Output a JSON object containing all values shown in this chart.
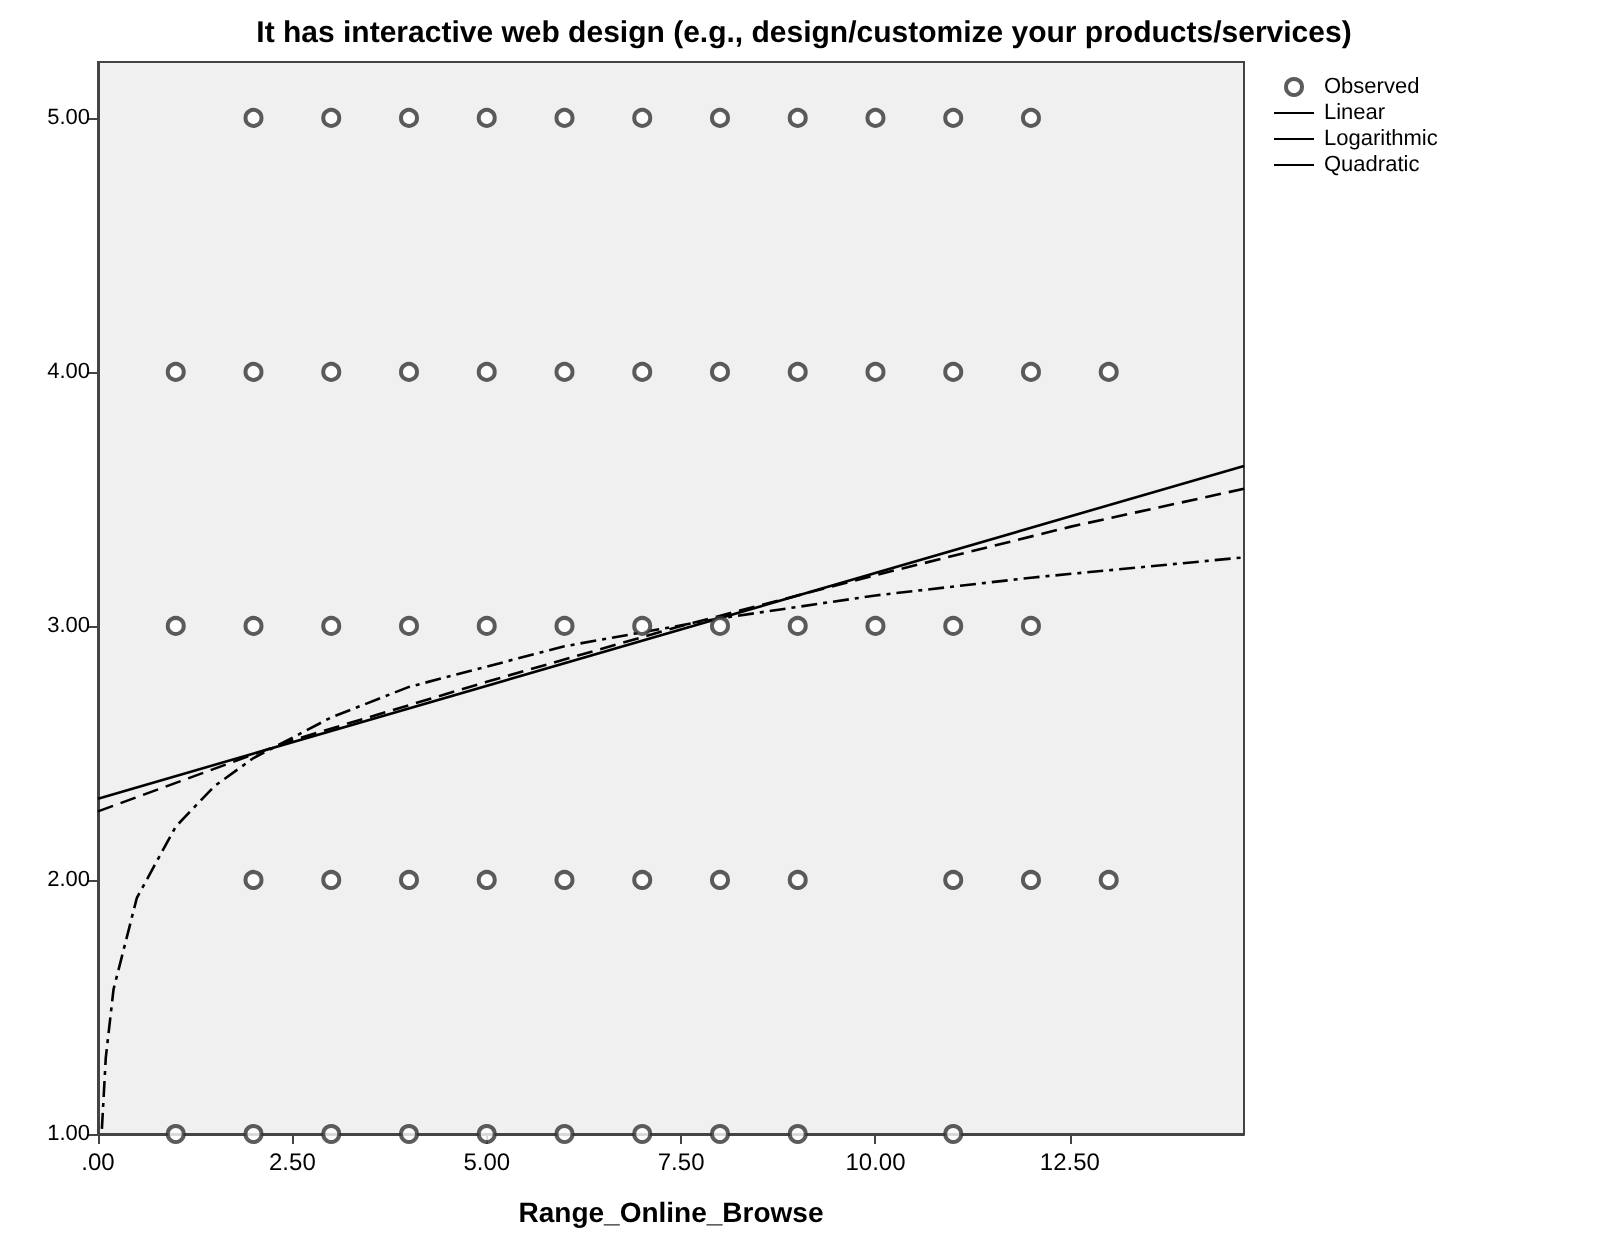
{
  "chart_data": {
    "type": "scatter",
    "title": "It has interactive web design (e.g., design/customize your products/services)",
    "xlabel": "Range_Online_Browse",
    "xlim": [
      0,
      14.74
    ],
    "ylim": [
      1,
      5.22
    ],
    "xticks": [
      {
        "value": 0,
        "label": ".00"
      },
      {
        "value": 2.5,
        "label": "2.50"
      },
      {
        "value": 5,
        "label": "5.00"
      },
      {
        "value": 7.5,
        "label": "7.50"
      },
      {
        "value": 10,
        "label": "10.00"
      },
      {
        "value": 12.5,
        "label": "12.50"
      }
    ],
    "yticks": [
      {
        "value": 1,
        "label": "1.00"
      },
      {
        "value": 2,
        "label": "2.00"
      },
      {
        "value": 3,
        "label": "3.00"
      },
      {
        "value": 4,
        "label": "4.00"
      },
      {
        "value": 5,
        "label": "5.00"
      }
    ],
    "grid": false,
    "legend": "top right",
    "marker": "circle",
    "series": [
      {
        "name": "Observed",
        "color": "#333333",
        "x": [
          2,
          3,
          4,
          5,
          6,
          7,
          8,
          9,
          10,
          11,
          12,
          1,
          2,
          3,
          4,
          5,
          6,
          7,
          8,
          9,
          10,
          11,
          12,
          13,
          1,
          2,
          3,
          4,
          5,
          6,
          7,
          8,
          9,
          10,
          11,
          12,
          2,
          3,
          4,
          5,
          6,
          7,
          8,
          9,
          11,
          12,
          13,
          1,
          2,
          3,
          4,
          5,
          6,
          7,
          8,
          9,
          11
        ],
        "values": [
          5,
          5,
          5,
          5,
          5,
          5,
          5,
          5,
          5,
          5,
          5,
          4,
          4,
          4,
          4,
          4,
          4,
          4,
          4,
          4,
          4,
          4,
          4,
          4,
          3,
          3,
          3,
          3,
          3,
          3,
          3,
          3,
          3,
          3,
          3,
          3,
          2,
          2,
          2,
          2,
          2,
          2,
          2,
          2,
          2,
          2,
          2,
          1,
          1,
          1,
          1,
          1,
          1,
          1,
          1,
          1,
          1
        ]
      },
      {
        "name": "Linear",
        "type": "line",
        "color": "#000000",
        "line_style": "solid",
        "marker": "none",
        "x": [
          0,
          14.74
        ],
        "values": [
          2.32,
          3.63
        ]
      },
      {
        "name": "Logarithmic",
        "type": "line",
        "color": "#000000",
        "line_style": "dashdot",
        "marker": "none",
        "x": [
          0.05,
          0.1,
          0.2,
          0.5,
          1,
          1.5,
          2,
          3,
          4,
          5,
          6,
          8,
          10,
          12,
          14.74
        ],
        "values": [
          1.02,
          1.3,
          1.57,
          1.93,
          2.21,
          2.37,
          2.48,
          2.64,
          2.76,
          2.84,
          2.92,
          3.03,
          3.12,
          3.19,
          3.27
        ]
      },
      {
        "name": "Quadratic",
        "type": "line",
        "color": "#000000",
        "line_style": "dashed",
        "marker": "none",
        "x": [
          0,
          2.5,
          5,
          7.5,
          10,
          12.5,
          14.74
        ],
        "values": [
          2.27,
          2.55,
          2.78,
          3.0,
          3.2,
          3.39,
          3.54
        ]
      }
    ]
  }
}
